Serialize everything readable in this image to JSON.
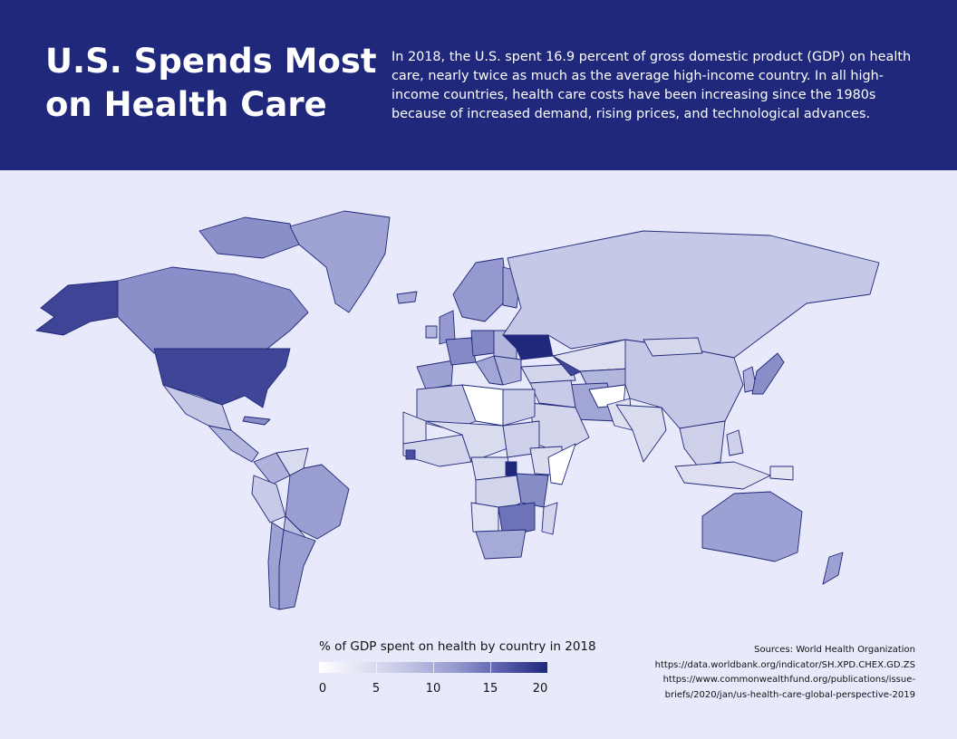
{
  "header": {
    "title_line1": "U.S. Spends Most",
    "title_line2": "on Health Care",
    "intro": "In 2018, the U.S. spent 16.9 percent of gross domestic product (GDP) on health care, nearly twice as much as the average high-income country. In all high-income countries, health care costs have been increasing since the 1980s because of increased demand, rising prices, and technological advances."
  },
  "legend": {
    "title": "% of GDP spent on health by country in 2018",
    "ticks": [
      "0",
      "5",
      "10",
      "15",
      "20"
    ],
    "range": [
      0,
      20
    ],
    "colors": [
      "#ffffff",
      "#c8cbe7",
      "#9599cf",
      "#5459a8",
      "#1f287a"
    ]
  },
  "sources": {
    "line1": "Sources: World Health Organization",
    "line2": "https://data.worldbank.org/indicator/SH.XPD.CHEX.GD.ZS",
    "line3": "https://www.commonwealthfund.org/publications/issue-",
    "line4": "briefs/2020/jan/us-health-care-global-perspective-2019"
  },
  "colors": {
    "header_bg": "#1f287a",
    "page_bg": "#e8eafb",
    "border": "#1f287a"
  },
  "regions": [
    {
      "name": "Alaska",
      "value": 17
    },
    {
      "name": "Canada",
      "value": 10.8
    },
    {
      "name": "Canadian Arctic Islands",
      "value": 10.8
    },
    {
      "name": "Greenland",
      "value": 9
    },
    {
      "name": "United States",
      "value": 16.9
    },
    {
      "name": "Mexico",
      "value": 5.4
    },
    {
      "name": "Central America",
      "value": 7
    },
    {
      "name": "Cuba",
      "value": 11
    },
    {
      "name": "Colombia",
      "value": 7.5
    },
    {
      "name": "Venezuela",
      "value": 3.5
    },
    {
      "name": "Ecuador / Peru",
      "value": 5
    },
    {
      "name": "Brazil",
      "value": 9.5
    },
    {
      "name": "Bolivia / Paraguay",
      "value": 6.5
    },
    {
      "name": "Argentina",
      "value": 9.6
    },
    {
      "name": "Chile",
      "value": 9.1
    },
    {
      "name": "Iceland",
      "value": 8.3
    },
    {
      "name": "Scandinavia",
      "value": 10
    },
    {
      "name": "Finland",
      "value": 9
    },
    {
      "name": "United Kingdom",
      "value": 10
    },
    {
      "name": "Ireland",
      "value": 7
    },
    {
      "name": "Spain / Portugal",
      "value": 9
    },
    {
      "name": "France",
      "value": 11.3
    },
    {
      "name": "Germany",
      "value": 11.4
    },
    {
      "name": "Central Europe",
      "value": 7
    },
    {
      "name": "Italy",
      "value": 8.7
    },
    {
      "name": "Balkans",
      "value": 7.5
    },
    {
      "name": "Ukraine",
      "value": 20
    },
    {
      "name": "Russia",
      "value": 5.3
    },
    {
      "name": "Turkey",
      "value": 4
    },
    {
      "name": "Caucasus",
      "value": 17
    },
    {
      "name": "Kazakhstan",
      "value": 3
    },
    {
      "name": "Central Asia",
      "value": 7
    },
    {
      "name": "Iran",
      "value": 8.7
    },
    {
      "name": "Afghanistan",
      "value": 0
    },
    {
      "name": "Pakistan",
      "value": 3
    },
    {
      "name": "Iraq / Syria",
      "value": 5
    },
    {
      "name": "Arabian Peninsula",
      "value": 4
    },
    {
      "name": "Yemen",
      "value": 0
    },
    {
      "name": "India",
      "value": 3.5
    },
    {
      "name": "China",
      "value": 5.4
    },
    {
      "name": "Mongolia",
      "value": 3.8
    },
    {
      "name": "Korea",
      "value": 7.6
    },
    {
      "name": "Japan",
      "value": 10.9
    },
    {
      "name": "Southeast Asia",
      "value": 4.5
    },
    {
      "name": "Indonesia",
      "value": 3
    },
    {
      "name": "Philippines",
      "value": 4.4
    },
    {
      "name": "Papua New Guinea",
      "value": 2.4
    },
    {
      "name": "Australia",
      "value": 9.3
    },
    {
      "name": "New Zealand",
      "value": 9.3
    },
    {
      "name": "Morocco / Algeria",
      "value": 5.5
    },
    {
      "name": "Libya",
      "value": 0
    },
    {
      "name": "Egypt",
      "value": 4.8
    },
    {
      "name": "Western Sahara / Mauritania",
      "value": 3
    },
    {
      "name": "West Africa",
      "value": 4
    },
    {
      "name": "Sierra Leone",
      "value": 16
    },
    {
      "name": "Sahel",
      "value": 3.5
    },
    {
      "name": "Sudan",
      "value": 4.5
    },
    {
      "name": "Ethiopia",
      "value": 3.3
    },
    {
      "name": "Somalia",
      "value": 0
    },
    {
      "name": "Central Africa",
      "value": 3.5
    },
    {
      "name": "Uganda",
      "value": 20
    },
    {
      "name": "Tanzania / Kenya",
      "value": 11
    },
    {
      "name": "DR Congo",
      "value": 4
    },
    {
      "name": "Angola",
      "value": 2.6
    },
    {
      "name": "Southern Africa",
      "value": 13
    },
    {
      "name": "South Africa",
      "value": 8.3
    },
    {
      "name": "Madagascar",
      "value": 4
    }
  ]
}
